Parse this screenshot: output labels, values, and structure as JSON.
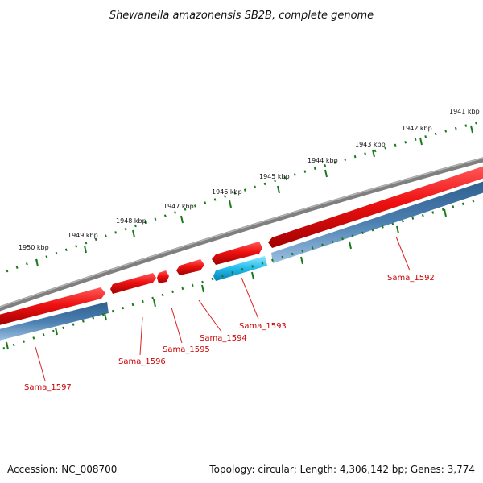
{
  "title": "Shewanella amazonensis SB2B, complete genome",
  "accession": "Accession: NC_008700",
  "topology": "Topology: circular; Length: 4,306,142 bp; Genes: 3,774",
  "scale": {
    "unit": "kbp",
    "labels": [
      "1941 kbp",
      "1942 kbp",
      "1943 kbp",
      "1944 kbp",
      "1945 kbp",
      "1946 kbp",
      "1947 kbp",
      "1948 kbp",
      "1949 kbp",
      "1950 kbp"
    ]
  },
  "genes": [
    {
      "name": "Sama_1592"
    },
    {
      "name": "Sama_1593"
    },
    {
      "name": "Sama_1594"
    },
    {
      "name": "Sama_1595"
    },
    {
      "name": "Sama_1596"
    },
    {
      "name": "Sama_1597"
    }
  ],
  "colors": {
    "backbone": "#808080",
    "cds_forward": "#ee1111",
    "cds_highlight": "#22bbee",
    "gene_track": "#4a7fb0",
    "ticks": "#1a7a1a",
    "labels": "#cc0000"
  }
}
